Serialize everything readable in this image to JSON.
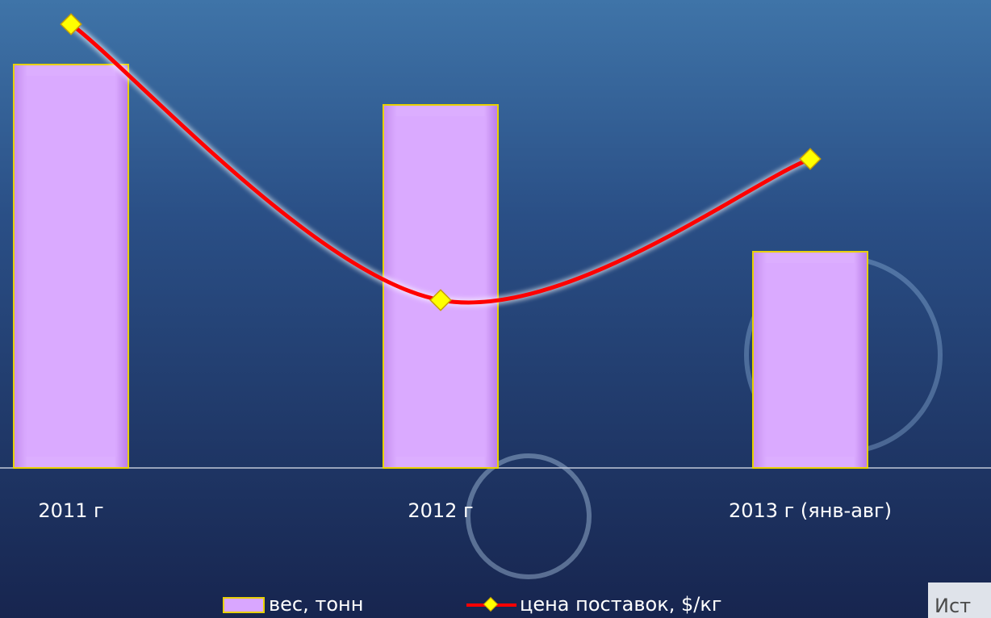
{
  "chart_data": {
    "type": "bar_line",
    "categories": [
      "2011 г",
      "2012 г",
      "2013 г (янв-авг)"
    ],
    "series": [
      {
        "name": "вес, тонн",
        "type": "bar",
        "color": "#d9a6ff",
        "values": [
          100,
          90,
          53.6
        ]
      },
      {
        "name": "цена поставок, $/кг",
        "type": "line",
        "color": "#ff0000",
        "marker_color": "#ffff00",
        "axis": "y2",
        "values": [
          5.5,
          2.08,
          3.83
        ]
      }
    ],
    "ylim": [
      0,
      110
    ],
    "y2lim": [
      0,
      5.5
    ],
    "source_fragment": "Ист"
  }
}
